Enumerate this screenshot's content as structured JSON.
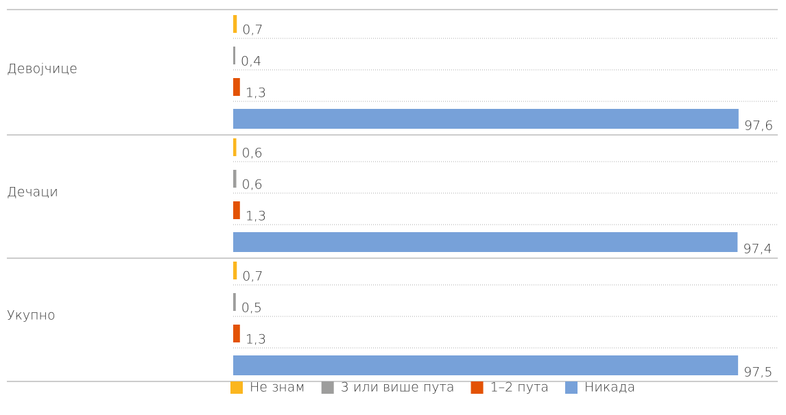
{
  "chart_data": {
    "type": "bar",
    "orientation": "horizontal",
    "categories": [
      "Девојчице",
      "Дечаци",
      "Укупно"
    ],
    "series": [
      {
        "name": "Не знам",
        "color": "#fbb61f",
        "values": [
          0.7,
          0.6,
          0.7
        ],
        "value_labels": [
          "0,7",
          "0,6",
          "0,7"
        ]
      },
      {
        "name": "3 или више пута",
        "color": "#9d9d9c",
        "values": [
          0.4,
          0.6,
          0.5
        ],
        "value_labels": [
          "0,4",
          "0,6",
          "0,5"
        ]
      },
      {
        "name": "1–2 пута",
        "color": "#e35205",
        "values": [
          1.3,
          1.3,
          1.3
        ],
        "value_labels": [
          "1,3",
          "1,3",
          "1,3"
        ]
      },
      {
        "name": "Никада",
        "color": "#77a1d9",
        "values": [
          97.6,
          97.4,
          97.5
        ],
        "value_labels": [
          "97,6",
          "97,4",
          "97,5"
        ]
      }
    ]
  }
}
